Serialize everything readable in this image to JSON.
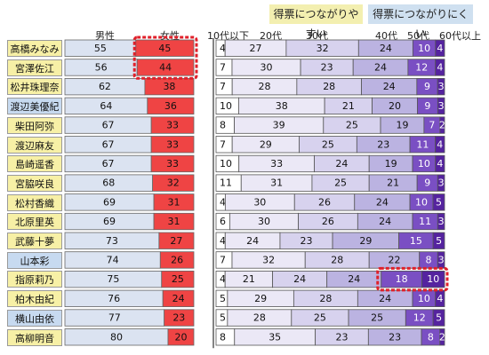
{
  "badges": {
    "easy": "得票につながりやすい",
    "hard": "得票につながりにくい"
  },
  "gender_headers": [
    "男性",
    "女性"
  ],
  "age_headers": [
    "10代以下",
    "20代",
    "30代",
    "40代",
    "50代",
    "60代以上"
  ],
  "colors": {
    "male": "#dbe3f1",
    "female": "#ef4444",
    "age": [
      "#ffffff",
      "#ebe8f6",
      "#d7d2ee",
      "#bbb3e1",
      "#7a4fc3",
      "#55239f"
    ],
    "name_easy": "#f7f0a6",
    "name_hard": "#c7daf0",
    "highlight": "#e0202a"
  },
  "chart_data": [
    {
      "type": "bar",
      "stacked": true,
      "orientation": "horizontal",
      "categories": [
        "高橋みなみ",
        "宮澤佐江",
        "松井珠理奈",
        "渡辺美優紀",
        "柴田阿弥",
        "渡辺麻友",
        "島崎遥香",
        "宮脇咲良",
        "松村香織",
        "北原里英",
        "武藤十夢",
        "山本彩",
        "指原莉乃",
        "柏木由紀",
        "横山由依",
        "高柳明音"
      ],
      "groups": [
        "easy",
        "easy",
        "easy",
        "hard",
        "easy",
        "easy",
        "easy",
        "easy",
        "easy",
        "easy",
        "easy",
        "hard",
        "easy",
        "easy",
        "hard",
        "easy"
      ],
      "series": [
        {
          "name": "男性",
          "values": [
            55,
            56,
            62,
            64,
            67,
            67,
            67,
            68,
            69,
            69,
            73,
            74,
            75,
            76,
            77,
            80
          ]
        },
        {
          "name": "女性",
          "values": [
            45,
            44,
            38,
            36,
            33,
            33,
            33,
            32,
            31,
            31,
            27,
            26,
            25,
            24,
            23,
            20
          ]
        }
      ],
      "highlight_cells": [
        {
          "category": "高橋みなみ",
          "series": "女性"
        },
        {
          "category": "宮澤佐江",
          "series": "女性"
        }
      ]
    },
    {
      "type": "bar",
      "stacked": true,
      "orientation": "horizontal",
      "categories": [
        "高橋みなみ",
        "宮澤佐江",
        "松井珠理奈",
        "渡辺美優紀",
        "柴田阿弥",
        "渡辺麻友",
        "島崎遥香",
        "宮脇咲良",
        "松村香織",
        "北原里英",
        "武藤十夢",
        "山本彩",
        "指原莉乃",
        "柏木由紀",
        "横山由依",
        "高柳明音"
      ],
      "series": [
        {
          "name": "10代以下",
          "values": [
            4,
            7,
            7,
            10,
            8,
            7,
            10,
            11,
            4,
            6,
            4,
            7,
            4,
            5,
            5,
            8
          ]
        },
        {
          "name": "20代",
          "values": [
            27,
            30,
            28,
            38,
            39,
            29,
            33,
            31,
            30,
            30,
            24,
            32,
            21,
            29,
            28,
            35
          ]
        },
        {
          "name": "30代",
          "values": [
            32,
            23,
            28,
            21,
            25,
            25,
            24,
            25,
            26,
            26,
            23,
            28,
            24,
            28,
            25,
            23
          ]
        },
        {
          "name": "40代",
          "values": [
            24,
            24,
            24,
            20,
            19,
            23,
            19,
            21,
            24,
            24,
            29,
            22,
            24,
            24,
            25,
            23
          ]
        },
        {
          "name": "50代",
          "values": [
            10,
            12,
            9,
            9,
            7,
            11,
            10,
            9,
            10,
            11,
            15,
            8,
            18,
            10,
            12,
            8
          ]
        },
        {
          "name": "60代以上",
          "values": [
            4,
            4,
            3,
            3,
            2,
            4,
            4,
            3,
            5,
            3,
            5,
            3,
            10,
            4,
            5,
            2
          ]
        }
      ],
      "highlight_cells": [
        {
          "category": "指原莉乃",
          "series": "50代"
        },
        {
          "category": "指原莉乃",
          "series": "60代以上"
        }
      ]
    }
  ]
}
